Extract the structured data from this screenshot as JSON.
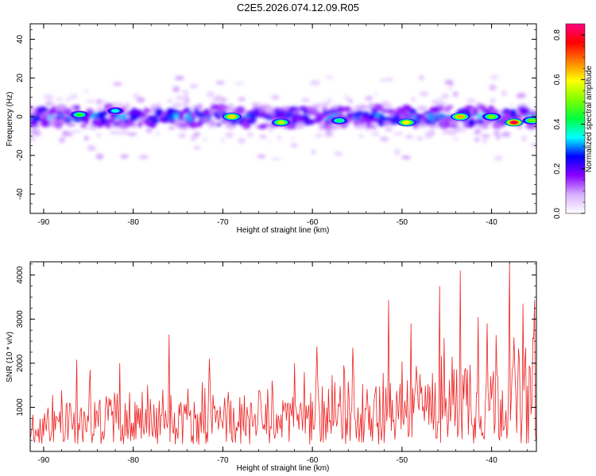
{
  "title": "C2E5.2026.074.12.09.R05",
  "chart_data": [
    {
      "type": "heatmap",
      "xlabel": "Height of straight line (km)",
      "ylabel": "Frequency (Hz)",
      "xlim": [
        -91.5,
        -35
      ],
      "ylim": [
        -50,
        48
      ],
      "x_ticks": [
        -90,
        -80,
        -70,
        -60,
        -50,
        -40
      ],
      "y_ticks": [
        40,
        20,
        0,
        -20,
        -40
      ],
      "colorbar": {
        "label": "Normalized spectral amplitude",
        "range": [
          0,
          0.85
        ],
        "ticks": [
          0.0,
          0.2,
          0.4,
          0.6,
          0.8
        ],
        "colormap": [
          "#ffffff",
          "#d8b0ff",
          "#8a00ff",
          "#0000ff",
          "#00ffff",
          "#00ff40",
          "#80ff00",
          "#ffff00",
          "#ff8000",
          "#ff0000",
          "#ff0080"
        ]
      },
      "signal_band": {
        "center_hz": 0,
        "half_width_hz": 5
      },
      "peaks": [
        {
          "x": -86,
          "y": 1,
          "amp": 0.45
        },
        {
          "x": -82,
          "y": 3,
          "amp": 0.35
        },
        {
          "x": -69,
          "y": 0,
          "amp": 0.62
        },
        {
          "x": -63.5,
          "y": -3,
          "amp": 0.55
        },
        {
          "x": -57,
          "y": -2,
          "amp": 0.4
        },
        {
          "x": -49.5,
          "y": -3,
          "amp": 0.6
        },
        {
          "x": -43.5,
          "y": 0,
          "amp": 0.65
        },
        {
          "x": -40,
          "y": 0,
          "amp": 0.5
        },
        {
          "x": -37.5,
          "y": -3,
          "amp": 0.8
        },
        {
          "x": -35.5,
          "y": -2,
          "amp": 0.5
        }
      ],
      "grid": false
    },
    {
      "type": "line",
      "xlabel": "Height of straight line (km)",
      "ylabel": "SNR (10 * v/v)",
      "xlim": [
        -91.5,
        -35
      ],
      "ylim": [
        0,
        4300
      ],
      "x_ticks": [
        -90,
        -80,
        -70,
        -60,
        -50,
        -40
      ],
      "y_ticks": [
        1000,
        2000,
        3000,
        4000
      ],
      "series_color": "#ee2222",
      "x_range_samples": {
        "start": -91.5,
        "end": -35,
        "step": 0.1
      },
      "envelope_points": [
        {
          "x": -91.5,
          "y": 900
        },
        {
          "x": -86,
          "y": 1300
        },
        {
          "x": -81,
          "y": 1400
        },
        {
          "x": -76,
          "y": 1400
        },
        {
          "x": -70,
          "y": 1300
        },
        {
          "x": -64,
          "y": 1400
        },
        {
          "x": -58,
          "y": 1500
        },
        {
          "x": -52,
          "y": 1900
        },
        {
          "x": -47,
          "y": 2100
        },
        {
          "x": -43,
          "y": 2400
        },
        {
          "x": -39,
          "y": 2600
        },
        {
          "x": -35,
          "y": 2500
        }
      ],
      "spike_points": [
        {
          "x": -86.3,
          "y": 2080
        },
        {
          "x": -84.8,
          "y": 1850
        },
        {
          "x": -81.5,
          "y": 2000
        },
        {
          "x": -76.0,
          "y": 2650
        },
        {
          "x": -71.5,
          "y": 2100
        },
        {
          "x": -62.0,
          "y": 2000
        },
        {
          "x": -59.5,
          "y": 2380
        },
        {
          "x": -55.5,
          "y": 2350
        },
        {
          "x": -51.5,
          "y": 3430
        },
        {
          "x": -49.0,
          "y": 2900
        },
        {
          "x": -45.8,
          "y": 3750
        },
        {
          "x": -43.5,
          "y": 4100
        },
        {
          "x": -41.5,
          "y": 3050
        },
        {
          "x": -40.5,
          "y": 2900
        },
        {
          "x": -38.0,
          "y": 4280
        },
        {
          "x": -36.5,
          "y": 3350
        },
        {
          "x": -35.2,
          "y": 3430
        }
      ],
      "grid": false
    }
  ]
}
